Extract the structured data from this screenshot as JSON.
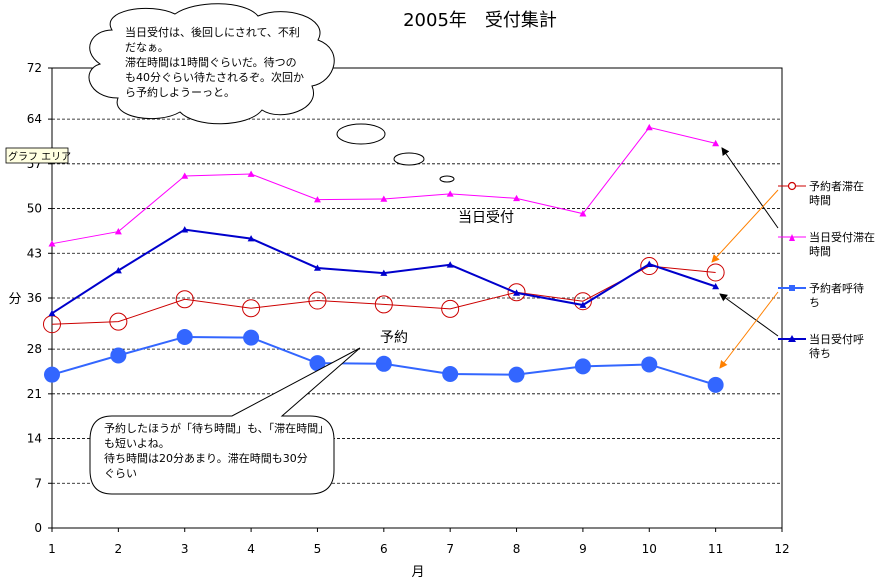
{
  "chart_data": {
    "type": "line",
    "title": "2005年　受付集計",
    "xlabel": "月",
    "ylabel": "分",
    "x": [
      1,
      2,
      3,
      4,
      5,
      6,
      7,
      8,
      9,
      10,
      11
    ],
    "x_ticks": [
      1,
      2,
      3,
      4,
      5,
      6,
      7,
      8,
      9,
      10,
      11,
      12
    ],
    "xlim": [
      1,
      12
    ],
    "y_ticks": [
      0,
      7,
      14,
      21,
      28,
      36,
      43,
      50,
      57,
      64,
      72
    ],
    "ylim": [
      0,
      72
    ],
    "grid": "horizontal-dashed",
    "legend_position": "right",
    "series": [
      {
        "name": "予約者滞在時間",
        "color": "#cc0000",
        "marker": "open-circle",
        "values": [
          31.9,
          32.3,
          35.8,
          34.4,
          35.6,
          35,
          34.3,
          36.9,
          35.5,
          41,
          40
        ]
      },
      {
        "name": "当日受付滞在時間",
        "color": "#ff00ff",
        "marker": "triangle",
        "values": [
          44.5,
          46.4,
          55.1,
          55.4,
          51.4,
          51.5,
          52.3,
          51.6,
          49.2,
          62.7,
          60.2
        ]
      },
      {
        "name": "予約者呼待ち",
        "color": "#3366ff",
        "marker": "filled-circle",
        "values": [
          24,
          27,
          29.9,
          29.8,
          25.8,
          25.7,
          24.1,
          24,
          25.3,
          25.6,
          22.4
        ]
      },
      {
        "name": "当日受付呼待ち",
        "color": "#0000cc",
        "marker": "triangle",
        "values": [
          33.6,
          40.3,
          46.7,
          45.3,
          40.7,
          39.9,
          41.2,
          36.8,
          34.9,
          41.3,
          37.8
        ]
      }
    ],
    "annotations": {
      "thought_bubble": [
        "当日受付は、後回しにされて、不利",
        "だなぁ。",
        "滞在時間は1時間ぐらいだ。待つの",
        "も40分ぐらい待たされるぞ。次回か",
        "ら予約しようーっと。"
      ],
      "speech_bubble": [
        "予約したほうが「待ち時間」も、「滞在時間」",
        "も短いよね。",
        "待ち時間は20分あまり。滞在時間も30分",
        "ぐらい"
      ],
      "label_same_day": "当日受付",
      "label_reserved": "予約",
      "tooltip": "グラフ エリア"
    },
    "legend_labels": [
      [
        "予約者滞在",
        "時間"
      ],
      [
        "当日受付滞在",
        "時間"
      ],
      [
        "予約者呼待",
        "ち"
      ],
      [
        "当日受付呼",
        "待ち"
      ]
    ]
  }
}
